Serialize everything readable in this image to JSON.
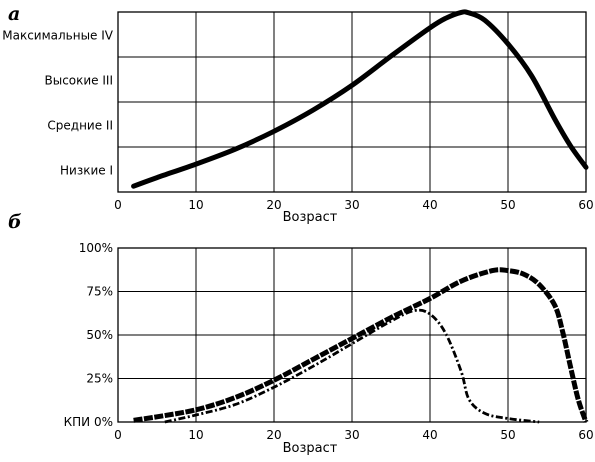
{
  "chart_data": [
    {
      "type": "line",
      "panel_label": "а",
      "xlabel": "Возраст",
      "xlim": [
        0,
        60
      ],
      "x_ticks": [
        "0",
        "10",
        "20",
        "30",
        "40",
        "50",
        "60"
      ],
      "ylim": [
        0,
        4
      ],
      "y_category_labels": [
        "Низкие I",
        "Средние II",
        "Высокие III",
        "Максимальные IV"
      ],
      "grid": true,
      "series": [
        {
          "style": "solid",
          "x": [
            2,
            5,
            10,
            15,
            20,
            25,
            30,
            35,
            40,
            42,
            44,
            45,
            47,
            50,
            53,
            56,
            58,
            60
          ],
          "y": [
            0.13,
            0.32,
            0.62,
            0.95,
            1.35,
            1.82,
            2.37,
            3.02,
            3.65,
            3.86,
            3.99,
            3.98,
            3.82,
            3.29,
            2.59,
            1.62,
            1.03,
            0.55
          ]
        }
      ]
    },
    {
      "type": "line",
      "panel_label": "б",
      "xlabel": "Возраст",
      "xlim": [
        0,
        60
      ],
      "x_ticks": [
        "0",
        "10",
        "20",
        "30",
        "40",
        "50",
        "60"
      ],
      "ylim": [
        0,
        100
      ],
      "y_ticks": [
        "КПИ  0%",
        "25%",
        "50%",
        "75%",
        "100%"
      ],
      "grid": true,
      "series": [
        {
          "style": "thick-dashed",
          "x": [
            2,
            5,
            10,
            15,
            20,
            25,
            30,
            35,
            40,
            44,
            48,
            50,
            52,
            54,
            56,
            57,
            58,
            59,
            60
          ],
          "y": [
            1,
            3,
            7,
            14,
            24,
            36,
            48,
            60,
            71,
            81,
            87,
            87,
            85,
            79,
            67,
            52,
            32,
            13,
            0
          ]
        },
        {
          "style": "thin-dash-dot",
          "x": [
            6,
            10,
            15,
            20,
            25,
            30,
            35,
            38,
            40,
            42,
            44,
            45,
            47,
            50,
            54
          ],
          "y": [
            0,
            4,
            10,
            20,
            32,
            45,
            58,
            64,
            62,
            51,
            29,
            13,
            5,
            2,
            0
          ]
        }
      ]
    }
  ]
}
